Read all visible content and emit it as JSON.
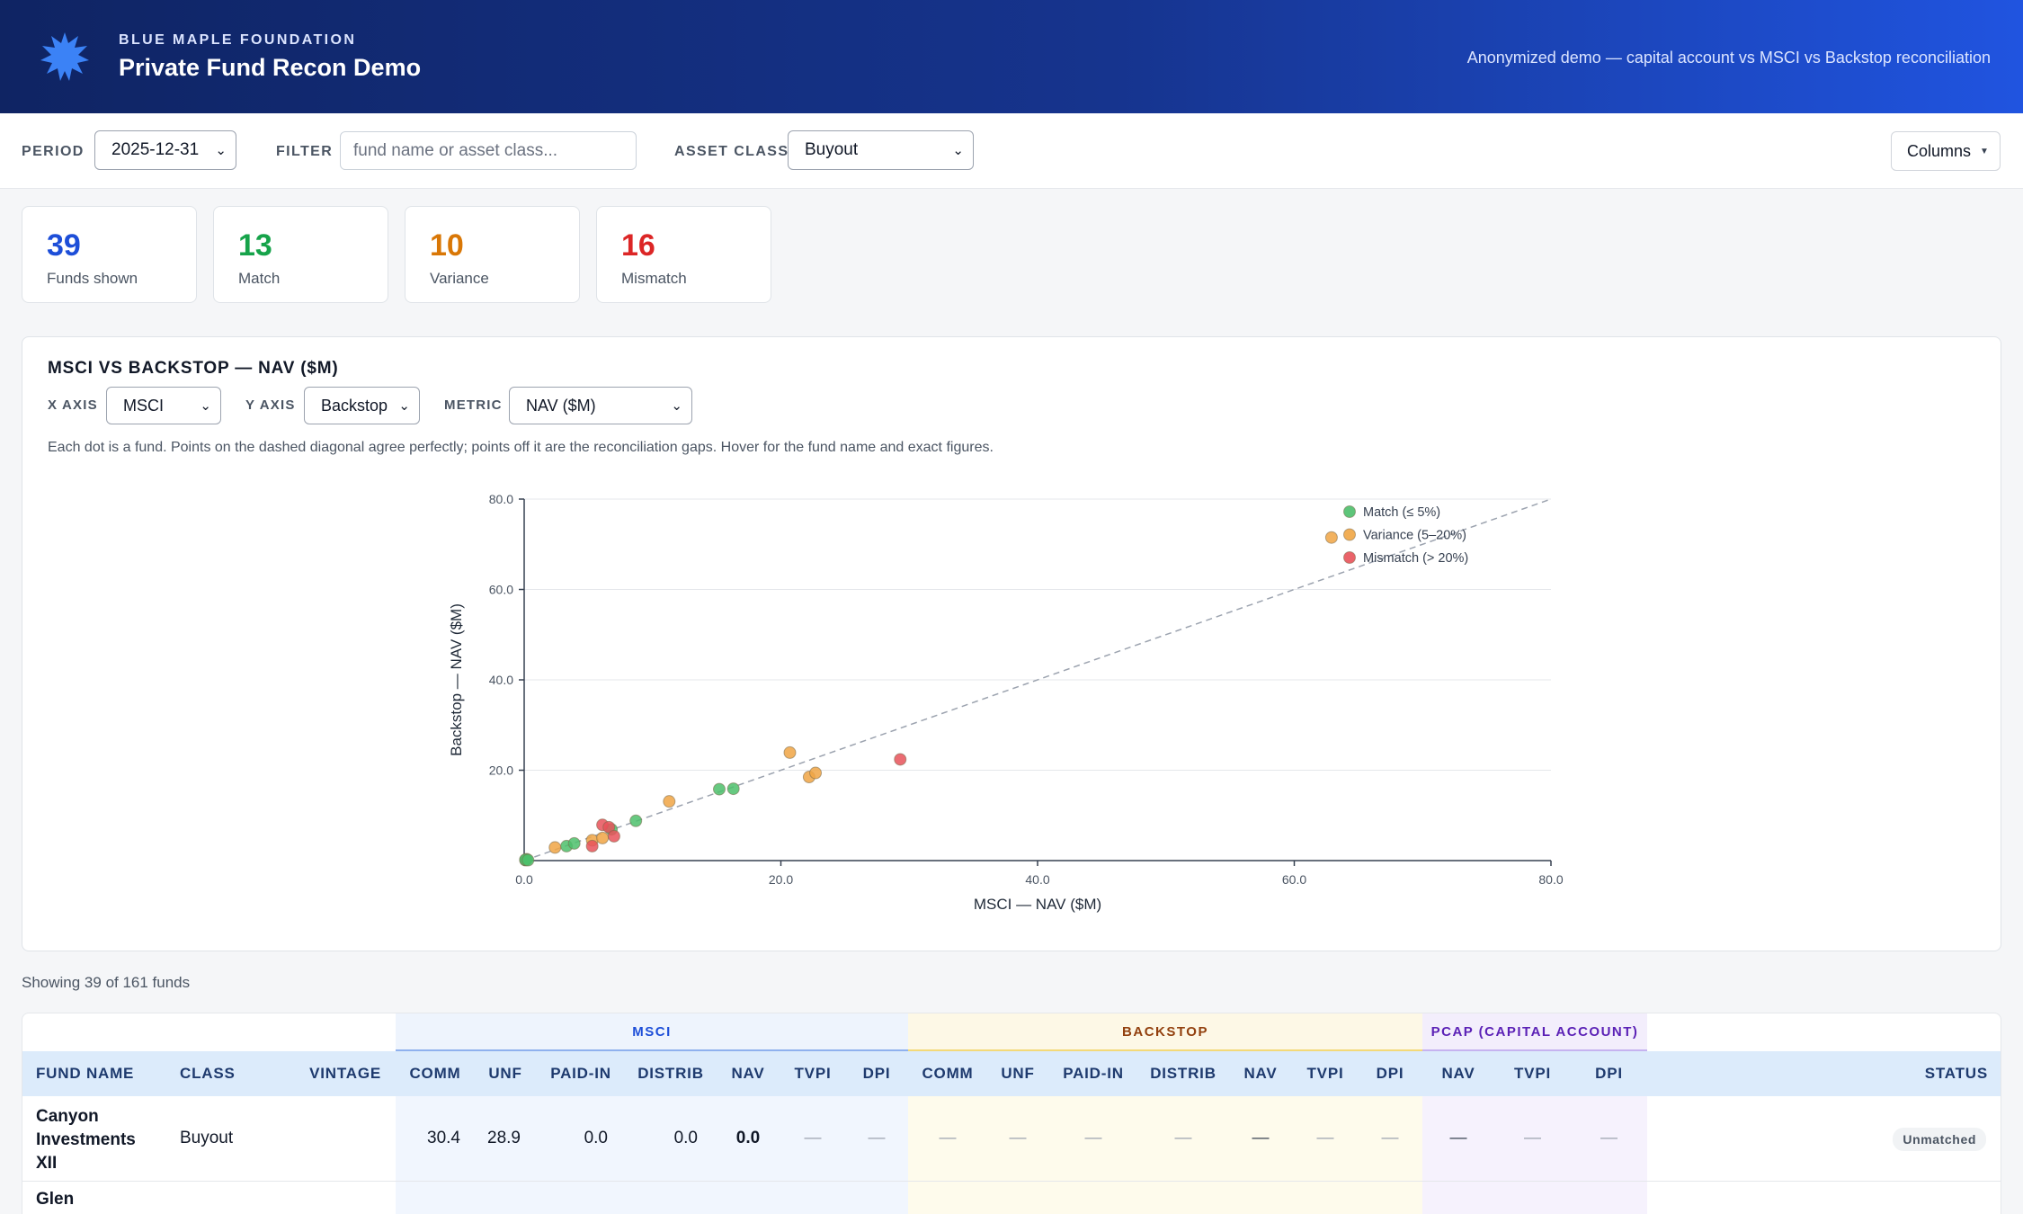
{
  "header": {
    "org": "BLUE MAPLE FOUNDATION",
    "title": "Private Fund Recon Demo",
    "tagline": "Anonymized demo — capital account vs MSCI vs Backstop reconciliation"
  },
  "toolbar": {
    "period_label": "PERIOD",
    "period_value": "2025-12-31",
    "filter_label": "FILTER",
    "filter_placeholder": "fund name or asset class...",
    "asset_class_label": "ASSET CLASS",
    "asset_class_value": "Buyout",
    "columns_button": "Columns"
  },
  "stats": [
    {
      "value": "39",
      "label": "Funds shown",
      "color": "#1d4ed8"
    },
    {
      "value": "13",
      "label": "Match",
      "color": "#16a34a"
    },
    {
      "value": "10",
      "label": "Variance",
      "color": "#d97706"
    },
    {
      "value": "16",
      "label": "Mismatch",
      "color": "#dc2626"
    }
  ],
  "chart_panel": {
    "title": "MSCI VS BACKSTOP — NAV ($M)",
    "x_axis_label": "X AXIS",
    "x_axis_value": "MSCI",
    "y_axis_label": "Y AXIS",
    "y_axis_value": "Backstop",
    "metric_label": "METRIC",
    "metric_value": "NAV ($M)",
    "description": "Each dot is a fund. Points on the dashed diagonal agree perfectly; points off it are the reconciliation gaps. Hover for the fund name and exact figures."
  },
  "chart_data": {
    "type": "scatter",
    "xlabel": "MSCI — NAV ($M)",
    "ylabel": "Backstop — NAV ($M)",
    "xlim": [
      0,
      80
    ],
    "ylim": [
      0,
      80
    ],
    "x_ticks": [
      "0.0",
      "20.0",
      "40.0",
      "60.0",
      "80.0"
    ],
    "y_ticks": [
      "20.0",
      "40.0",
      "60.0",
      "80.0"
    ],
    "diagonal": true,
    "grid": "horizontal",
    "legend_position": "top-right",
    "series": [
      {
        "name": "Match (≤ 5%)",
        "color": "#4cbf6b",
        "points": [
          [
            0.1,
            0.1
          ],
          [
            0.2,
            0.3
          ],
          [
            0.1,
            0.2
          ],
          [
            3.3,
            3.2
          ],
          [
            3.9,
            3.8
          ],
          [
            6.8,
            6.9
          ],
          [
            8.7,
            8.8
          ],
          [
            15.2,
            15.8
          ],
          [
            16.3,
            15.9
          ],
          [
            0.3,
            0.1
          ]
        ]
      },
      {
        "name": "Variance (5–20%)",
        "color": "#f0a544",
        "points": [
          [
            2.4,
            2.9
          ],
          [
            5.3,
            4.5
          ],
          [
            6.1,
            5.0
          ],
          [
            11.3,
            13.1
          ],
          [
            20.7,
            23.9
          ],
          [
            22.2,
            18.5
          ],
          [
            22.7,
            19.4
          ],
          [
            62.9,
            71.5
          ]
        ]
      },
      {
        "name": "Mismatch (> 20%)",
        "color": "#e8525a",
        "points": [
          [
            5.3,
            3.2
          ],
          [
            6.1,
            7.9
          ],
          [
            6.6,
            7.4
          ],
          [
            7.0,
            5.4
          ],
          [
            29.3,
            22.4
          ]
        ]
      }
    ]
  },
  "showing_text": "Showing 39 of 161 funds",
  "table": {
    "groups": {
      "msci": "MSCI",
      "backstop": "BACKSTOP",
      "pcap": "PCAP (CAPITAL ACCOUNT)"
    },
    "headers": {
      "fund_name": "FUND NAME",
      "class": "CLASS",
      "vintage": "VINTAGE",
      "msci": [
        "COMM",
        "UNF",
        "PAID-IN",
        "DISTRIB",
        "NAV",
        "TVPI",
        "DPI"
      ],
      "backstop": [
        "COMM",
        "UNF",
        "PAID-IN",
        "DISTRIB",
        "NAV",
        "TVPI",
        "DPI"
      ],
      "pcap": [
        "NAV",
        "TVPI",
        "DPI"
      ],
      "status": "STATUS"
    },
    "rows": [
      {
        "fund_name": "Canyon Investments XII",
        "class": "Buyout",
        "msci": [
          "30.4",
          "28.9",
          "0.0",
          "0.0",
          "0.0",
          "—",
          "—"
        ],
        "backstop": [
          "—",
          "—",
          "—",
          "—",
          "—",
          "—",
          "—"
        ],
        "pcap": [
          "—",
          "—",
          "—"
        ],
        "status": "Unmatched"
      },
      {
        "fund_name": "Glen"
      }
    ]
  },
  "colors": {
    "header_start": "#0f2463",
    "header_end": "#2054e0",
    "accent": "#1d4ed8"
  }
}
